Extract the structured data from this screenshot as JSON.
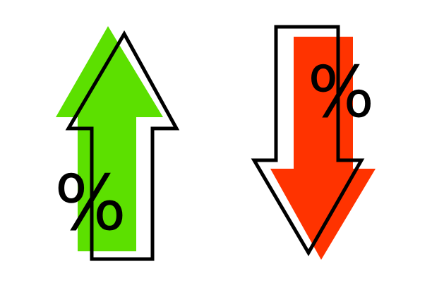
{
  "colors": {
    "background": "#ffffff",
    "up_arrow_fill": "#5ce000",
    "down_arrow_fill": "#ff3300",
    "outline": "#000000"
  },
  "up_arrow": {
    "icon": "arrow-up-icon",
    "symbol": "%"
  },
  "down_arrow": {
    "icon": "arrow-down-icon",
    "symbol": "%"
  }
}
